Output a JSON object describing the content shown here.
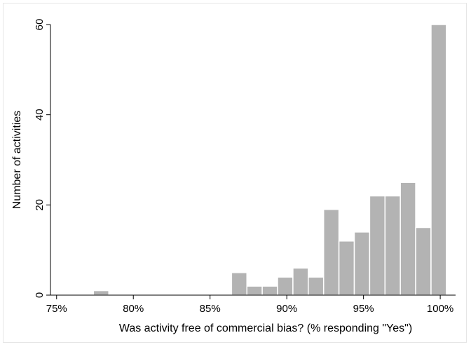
{
  "chart_data": {
    "type": "bar",
    "title": "",
    "xlabel": "Was activity free of commercial bias? (% responding \"Yes\")",
    "ylabel": "Number of activities",
    "xlim": [
      74.6,
      101
    ],
    "ylim": [
      0,
      60
    ],
    "x_ticks": [
      {
        "value": 75,
        "label": "75%"
      },
      {
        "value": 80,
        "label": "80%"
      },
      {
        "value": 85,
        "label": "85%"
      },
      {
        "value": 90,
        "label": "90%"
      },
      {
        "value": 95,
        "label": "95%"
      },
      {
        "value": 100,
        "label": "100%"
      }
    ],
    "y_ticks": [
      {
        "value": 0,
        "label": "0"
      },
      {
        "value": 20,
        "label": "20"
      },
      {
        "value": 40,
        "label": "40"
      },
      {
        "value": 60,
        "label": "60"
      }
    ],
    "bin_width": 1,
    "bins": [
      {
        "start": 77.4,
        "count": 1
      },
      {
        "start": 86.4,
        "count": 5
      },
      {
        "start": 87.4,
        "count": 2
      },
      {
        "start": 88.4,
        "count": 2
      },
      {
        "start": 89.4,
        "count": 4
      },
      {
        "start": 90.4,
        "count": 6
      },
      {
        "start": 91.4,
        "count": 4
      },
      {
        "start": 92.4,
        "count": 19
      },
      {
        "start": 93.4,
        "count": 12
      },
      {
        "start": 94.4,
        "count": 14
      },
      {
        "start": 95.4,
        "count": 22
      },
      {
        "start": 96.4,
        "count": 22
      },
      {
        "start": 97.4,
        "count": 25
      },
      {
        "start": 98.4,
        "count": 15
      },
      {
        "start": 99.4,
        "count": 60
      }
    ],
    "colors": {
      "bar_fill": "#b3b3b3",
      "bar_stroke": "#ffffff",
      "axis": "#000000"
    },
    "grid": false,
    "legend": "none"
  }
}
